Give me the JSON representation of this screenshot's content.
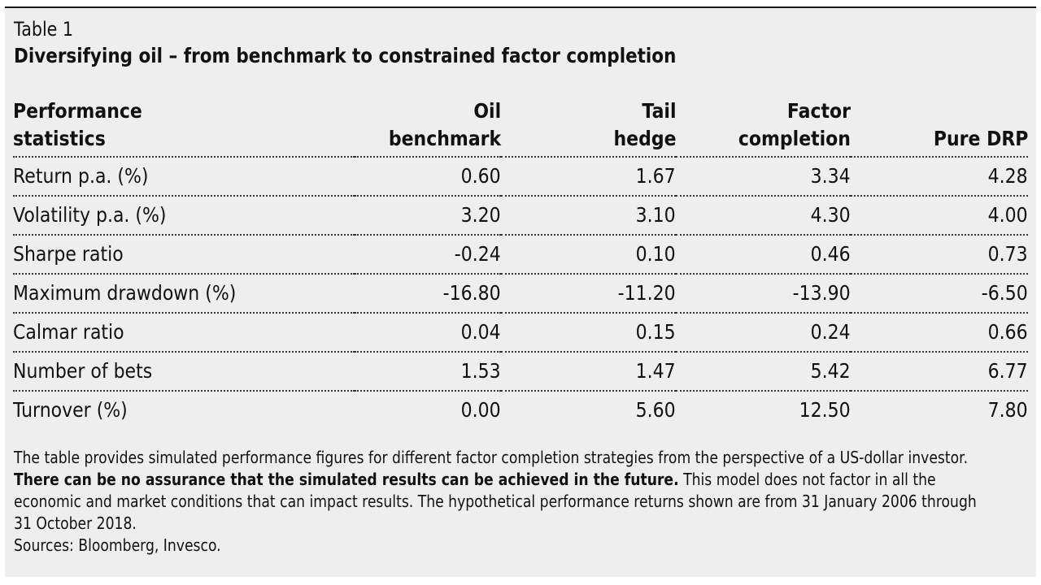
{
  "caption": {
    "label": "Table 1",
    "title": "Diversifying oil – from benchmark to constrained factor completion"
  },
  "table": {
    "headers": [
      "Performance\nstatistics",
      "Oil\nbenchmark",
      "Tail\nhedge",
      "Factor\ncompletion",
      "Pure DRP"
    ],
    "rows": [
      [
        "Return p.a. (%)",
        "0.60",
        "1.67",
        "3.34",
        "4.28"
      ],
      [
        "Volatility p.a. (%)",
        "3.20",
        "3.10",
        "4.30",
        "4.00"
      ],
      [
        "Sharpe ratio",
        "-0.24",
        "0.10",
        "0.46",
        "0.73"
      ],
      [
        "Maximum drawdown (%)",
        "-16.80",
        "-11.20",
        "-13.90",
        "-6.50"
      ],
      [
        "Calmar ratio",
        "0.04",
        "0.15",
        "0.24",
        "0.66"
      ],
      [
        "Number of bets",
        "1.53",
        "1.47",
        "5.42",
        "6.77"
      ],
      [
        "Turnover (%)",
        "0.00",
        "5.60",
        "12.50",
        "7.80"
      ]
    ]
  },
  "notes": {
    "intro": "The table provides simulated performance figures for different factor completion strategies from the perspective of a US-dollar investor.",
    "disclaimer_bold": "There can be no assurance that the simulated results can be achieved in the future.",
    "disclaimer_rest": " This model does not factor in all the economic and market conditions that can impact results. The hypothetical performance returns shown are from 31 January 2006 through 31 October 2018.",
    "sources": "Sources: Bloomberg, Invesco."
  },
  "colors": {
    "panel_background": "#eeeeee",
    "text": "#111111",
    "rule": "#333333"
  }
}
